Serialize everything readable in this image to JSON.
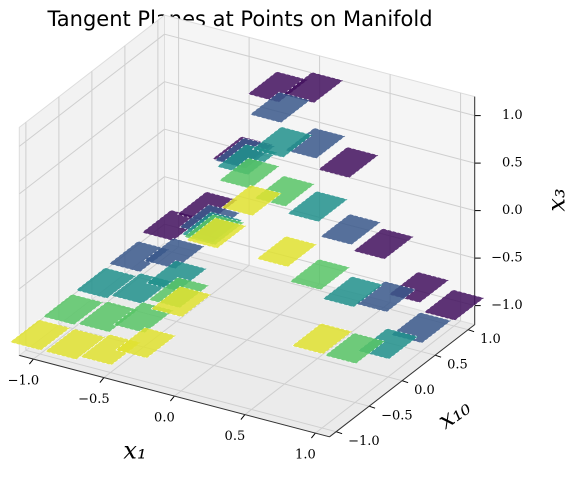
{
  "chart_data": {
    "type": "surface3d",
    "title": "Tangent Planes at Points on Manifold",
    "xlabel": "x₁",
    "ylabel": "x₁₀",
    "zlabel": "x₃",
    "colormap": "viridis",
    "xlim": [
      -1.1,
      1.1
    ],
    "ylim": [
      -1.1,
      1.1
    ],
    "zlim": [
      -1.2,
      1.2
    ],
    "xticks": [
      {
        "value": -1,
        "label": "−1.0"
      },
      {
        "value": -0.5,
        "label": "−0.5"
      },
      {
        "value": 0,
        "label": "0.0"
      },
      {
        "value": 0.5,
        "label": "0.5"
      },
      {
        "value": 1,
        "label": "1.0"
      }
    ],
    "yticks": [
      {
        "value": -1,
        "label": "−1.0"
      },
      {
        "value": -0.5,
        "label": "−0.5"
      },
      {
        "value": 0,
        "label": "0.0"
      },
      {
        "value": 0.5,
        "label": "0.5"
      },
      {
        "value": 1,
        "label": "1.0"
      }
    ],
    "zticks": [
      {
        "value": -1,
        "label": "−1.0"
      },
      {
        "value": -0.5,
        "label": "−0.5"
      },
      {
        "value": 0,
        "label": "0.0"
      },
      {
        "value": 0.5,
        "label": "0.5"
      },
      {
        "value": 1,
        "label": "1.0"
      }
    ],
    "x": [
      -1,
      -0.75,
      -0.5,
      -0.25,
      0,
      0.25,
      0.5,
      0.75,
      1,
      -1,
      -0.75,
      -0.5,
      -0.25,
      0,
      0.25,
      0.5,
      0.75,
      1,
      -1,
      -0.75,
      -0.5,
      -0.25,
      0,
      0.25,
      0.5,
      0.75,
      1,
      -1,
      -0.75,
      -0.5,
      -0.25,
      0,
      0.25,
      0.5,
      0.75,
      1,
      -1,
      -0.75,
      -0.5,
      -0.25,
      0,
      0.25,
      0.5,
      0.75,
      1
    ],
    "y": [
      -1,
      -1,
      -1,
      -1,
      -1,
      -1,
      -1,
      -1,
      -1,
      -0.5,
      -0.5,
      -0.5,
      -0.5,
      -0.5,
      -0.5,
      -0.5,
      -0.5,
      -0.5,
      0,
      0,
      0,
      0,
      0,
      0,
      0,
      0,
      0,
      0.5,
      0.5,
      0.5,
      0.5,
      0.5,
      0.5,
      0.5,
      0.5,
      0.5,
      1,
      1,
      1,
      1,
      1,
      1,
      1,
      1,
      1
    ],
    "z": [
      -1.0,
      -1.0,
      -0.96,
      -0.79,
      -0.26,
      0.56,
      1.0,
      0.56,
      -0.26,
      -1.0,
      -0.98,
      -0.89,
      -0.53,
      0.23,
      0.92,
      0.83,
      0.05,
      -0.63,
      -0.99,
      -0.95,
      -0.72,
      -0.11,
      0.7,
      0.98,
      0.4,
      -0.4,
      -0.85,
      -0.98,
      -0.85,
      -0.4,
      0.4,
      0.98,
      0.7,
      -0.11,
      -0.72,
      -0.95,
      -0.92,
      -0.63,
      0.05,
      0.83,
      0.92,
      0.23,
      -0.53,
      -0.89,
      -0.98
    ],
    "grid": true
  }
}
